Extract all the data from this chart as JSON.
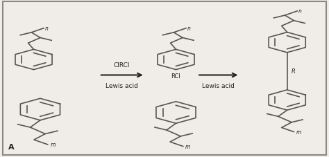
{
  "background_color": "#f0ede8",
  "border_color": "#888888",
  "arrow1_label_top": "ClRCl",
  "arrow1_label_bot": "Lewis acid",
  "arrow2_label_bot": "Lewis acid",
  "rcl_label": "RCl",
  "r_label": "R",
  "label_A": "A",
  "text_color": "#222222",
  "line_color": "#555555",
  "fig_width": 4.74,
  "fig_height": 2.28,
  "dpi": 100
}
